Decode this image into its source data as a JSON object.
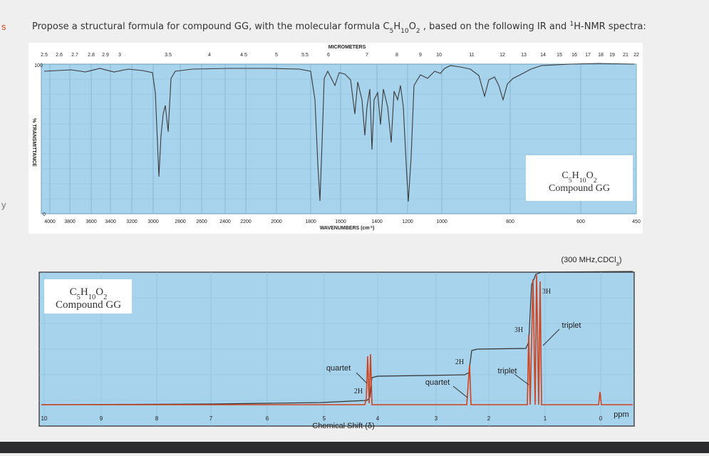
{
  "margin_marks": [
    "s",
    "y"
  ],
  "question": {
    "prefix": "Propose a structural formula for compound GG, with the molecular formula ",
    "formula": [
      "C",
      "5",
      "H",
      "10",
      "O",
      "2"
    ],
    "middle": " , based on the following IR and ",
    "superscript": "1",
    "suffix": "H-NMR spectra:"
  },
  "ir_spectrum": {
    "top_axis_title": "MICROMETERS",
    "micrometer_labels": [
      "2.5",
      "2.6",
      "2.7",
      "2.8",
      "2.9",
      "3",
      "3.5",
      "4",
      "4.5",
      "5",
      "5.5",
      "6",
      "7",
      "8",
      "9",
      "10",
      "11",
      "12",
      "13",
      "14",
      "15",
      "16",
      "17",
      "18",
      "19",
      "21",
      "22"
    ],
    "bottom_axis_title": [
      "WAVENUMBERS (cm",
      "-1",
      ")"
    ],
    "wavenumber_labels": [
      "4000",
      "3800",
      "3600",
      "3400",
      "3200",
      "3000",
      "2800",
      "2600",
      "2400",
      "2200",
      "2000",
      "1800",
      "1600",
      "1400",
      "1200",
      "1000",
      "800",
      "600",
      "450"
    ],
    "y_labels": [
      "100",
      "0"
    ],
    "y_axis_title": "% TRANSMITTANCE",
    "inset": {
      "formula": [
        "C",
        "5",
        "H",
        "10",
        "O",
        "2"
      ],
      "name": "Compound GG"
    }
  },
  "nmr_spectrum": {
    "conditions": [
      "(300 MHz,CDCl",
      "3",
      ")"
    ],
    "ppm_labels": [
      "10",
      "9",
      "8",
      "7",
      "6",
      "5",
      "4",
      "3",
      "2",
      "1",
      "0"
    ],
    "unit": "ppm",
    "axis_title": "Chemical Shift (δ)",
    "inset": {
      "formula": [
        "C",
        "5",
        "H",
        "10",
        "O",
        "2"
      ],
      "name": "Compound GG"
    },
    "annotations": [
      "quartet",
      "2H",
      "quartet",
      "2H",
      "triplet",
      "3H",
      "triplet",
      "3H"
    ]
  }
}
